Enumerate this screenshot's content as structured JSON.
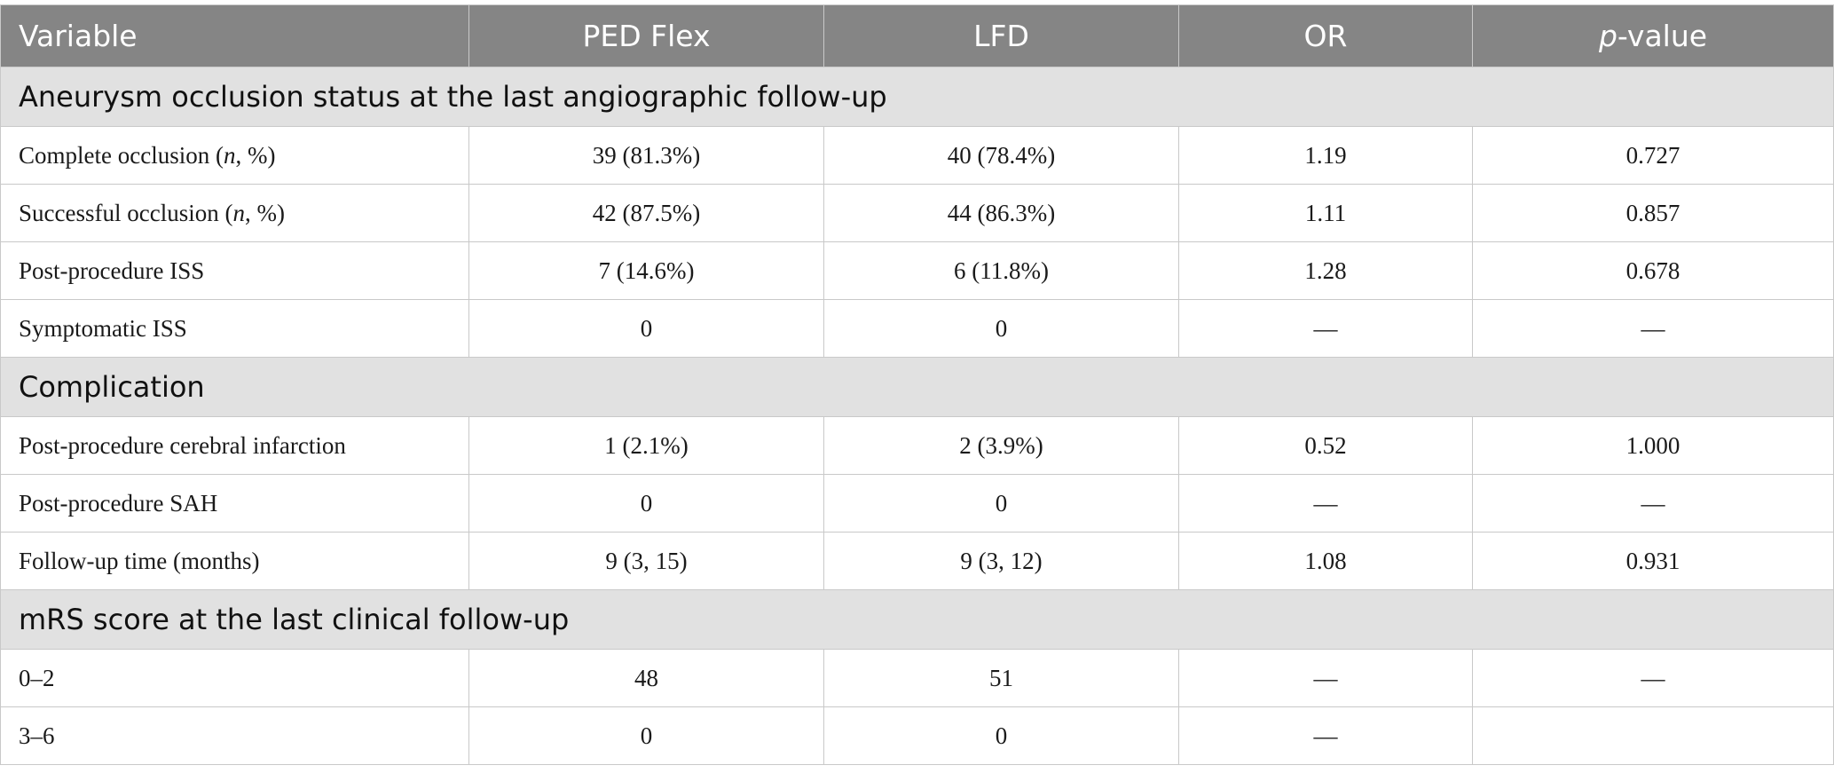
{
  "columns": [
    "Variable",
    "PED Flex",
    "LFD",
    "OR",
    "p",
    "-value"
  ],
  "sections": [
    {
      "title": "Aneurysm occlusion status at the last angiographic follow-up",
      "rows": [
        {
          "pre": "Complete occlusion (",
          "ital": "n",
          "post": ", %)",
          "ped": "39 (81.3%)",
          "lfd": "40 (78.4%)",
          "or": "1.19",
          "p": "0.727"
        },
        {
          "pre": "Successful occlusion (",
          "ital": "n",
          "post": ", %)",
          "ped": "42 (87.5%)",
          "lfd": "44 (86.3%)",
          "or": "1.11",
          "p": "0.857"
        },
        {
          "pre": "Post-procedure ISS",
          "ped": "7 (14.6%)",
          "lfd": "6 (11.8%)",
          "or": "1.28",
          "p": "0.678"
        },
        {
          "pre": "Symptomatic ISS",
          "ped": "0",
          "lfd": "0",
          "or": "—",
          "p": "—"
        }
      ]
    },
    {
      "title": "Complication",
      "rows": [
        {
          "pre": "Post-procedure cerebral infarction",
          "ped": "1 (2.1%)",
          "lfd": "2 (3.9%)",
          "or": "0.52",
          "p": "1.000"
        },
        {
          "pre": "Post-procedure SAH",
          "ped": "0",
          "lfd": "0",
          "or": "—",
          "p": "—"
        },
        {
          "pre": "Follow-up time (months)",
          "ped": "9 (3, 15)",
          "lfd": "9 (3, 12)",
          "or": "1.08",
          "p": "0.931"
        }
      ]
    },
    {
      "title": "mRS score at the last clinical follow-up",
      "rows": [
        {
          "pre": "0–2",
          "ped": "48",
          "lfd": "51",
          "or": "—",
          "p": "—"
        },
        {
          "pre": "3–6",
          "ped": "0",
          "lfd": "0",
          "or": "—",
          "p": ""
        }
      ]
    }
  ]
}
